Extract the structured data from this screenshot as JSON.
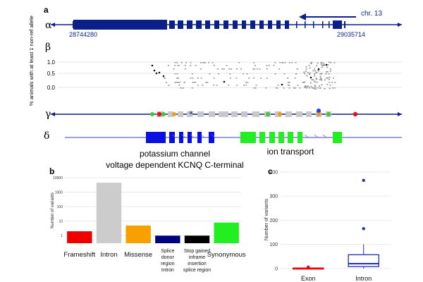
{
  "panel_labels": {
    "a": "a",
    "alpha": "α",
    "beta": "β",
    "gamma": "γ",
    "delta": "δ",
    "b": "b",
    "c": "c"
  },
  "gene": {
    "chromosome": "chr. 13",
    "start": "28744280",
    "end": "29035714",
    "strand": "reverse",
    "color": "#0b1f8a"
  },
  "beta": {
    "ylabel": "% animals with at least 1 non-ref allele",
    "ticks": [
      "1.0",
      "0.5",
      "0.0"
    ]
  },
  "domains": [
    {
      "name": "potassium channel voltage dependent KCNQ C-terminal",
      "line1": "potassium channel",
      "line2": "voltage dependent KCNQ C-terminal",
      "color": "#0a10e0"
    },
    {
      "name": "ion transport",
      "color": "#22ee22"
    }
  ],
  "gamma_colors": {
    "frameshift": "#e8141b",
    "missense": "#f39a1b",
    "synonymous": "#35cc35",
    "splice": "#0b1f8a",
    "exon": "#c8c8c8"
  },
  "chart_data": [
    {
      "panel": "b",
      "type": "bar",
      "ylabel": "Number of variants",
      "yscale": "log",
      "ytick_labels": [
        "1",
        "10",
        "100",
        "1000",
        "10000"
      ],
      "ylim": [
        0.3,
        10000
      ],
      "categories": [
        "Frameshift",
        "Intron",
        "Missense",
        "Splice donor region Intron",
        "Stop gained inframe insertion splice region",
        "Synonymous"
      ],
      "category_labels": [
        [
          "Frameshift"
        ],
        [
          "Intron"
        ],
        [
          "Missense"
        ],
        [
          "Splice",
          "donor",
          "region",
          "Intron"
        ],
        [
          "Stop gained",
          "inframe",
          "insertion",
          "splice region"
        ],
        [
          "Synonymous"
        ]
      ],
      "values": [
        2,
        4500,
        5,
        1,
        1,
        8
      ],
      "colors": [
        "#ee0000",
        "#cccccc",
        "#f7a000",
        "#00007f",
        "#000000",
        "#22ee22"
      ],
      "grid": true
    },
    {
      "panel": "c",
      "type": "box",
      "ylabel": "Number of variants",
      "categories": [
        "Exon",
        "Intron"
      ],
      "ylim": [
        -15,
        420
      ],
      "yticks": [
        0,
        100,
        200,
        300,
        400
      ],
      "boxes": [
        {
          "name": "Exon",
          "q1": 0,
          "median": 1,
          "q3": 2,
          "whisker_low": 0,
          "whisker_high": 3,
          "outliers": [
            6
          ],
          "color": "#ee0000"
        },
        {
          "name": "Intron",
          "q1": 8,
          "median": 20,
          "q3": 57,
          "whisker_low": 0,
          "whisker_high": 100,
          "outliers": [
            165,
            365
          ],
          "color": "#1f2fb8"
        }
      ],
      "grid": true
    }
  ]
}
